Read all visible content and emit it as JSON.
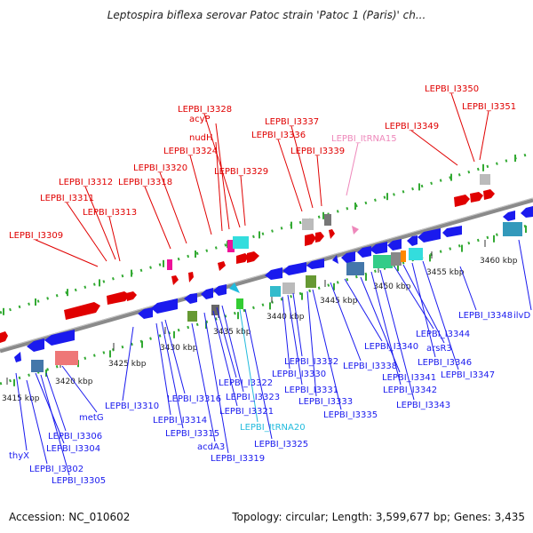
{
  "title": "Leptospira biflexa serovar Patoc strain 'Patoc 1 (Paris)' ch...",
  "footer": {
    "accession": "Accession: NC_010602",
    "summary": "Topology: circular; Length: 3,599,677 bp; Genes: 3,435"
  },
  "colors": {
    "forward": "#e00000",
    "reverse": "#1a1aee",
    "ncrna": "#ee88bb",
    "trna": "#22bbdd",
    "backbone": "#888888",
    "tick": "#33aa33"
  },
  "kbp_ticks": [
    {
      "label": "3415 kbp"
    },
    {
      "label": "3420 kbp"
    },
    {
      "label": "3425 kbp"
    },
    {
      "label": "3430 kbp"
    },
    {
      "label": "3435 kbp"
    },
    {
      "label": "3440 kbp"
    },
    {
      "label": "3445 kbp"
    },
    {
      "label": "3450 kbp"
    },
    {
      "label": "3455 kbp"
    },
    {
      "label": "3460 kbp"
    }
  ],
  "top_labels": [
    {
      "text": "LEPBI_I3309",
      "kind": "forward"
    },
    {
      "text": "LEPBI_I3311",
      "kind": "forward"
    },
    {
      "text": "LEPBI_I3312",
      "kind": "forward"
    },
    {
      "text": "LEPBI_I3313",
      "kind": "forward"
    },
    {
      "text": "LEPBI_I3318",
      "kind": "forward"
    },
    {
      "text": "LEPBI_I3320",
      "kind": "forward"
    },
    {
      "text": "LEPBI_I3324",
      "kind": "forward"
    },
    {
      "text": "nudH",
      "kind": "forward"
    },
    {
      "text": "acyP",
      "kind": "forward"
    },
    {
      "text": "LEPBI_I3328",
      "kind": "forward"
    },
    {
      "text": "LEPBI_I3329",
      "kind": "forward"
    },
    {
      "text": "LEPBI_I3336",
      "kind": "forward"
    },
    {
      "text": "LEPBI_I3337",
      "kind": "forward"
    },
    {
      "text": "LEPBI_I3339",
      "kind": "forward"
    },
    {
      "text": "LEPBI_ItRNA15",
      "kind": "ncrna"
    },
    {
      "text": "LEPBI_I3349",
      "kind": "forward"
    },
    {
      "text": "LEPBI_I3350",
      "kind": "forward"
    },
    {
      "text": "LEPBI_I3351",
      "kind": "forward"
    }
  ],
  "bottom_labels": [
    {
      "text": "thyX",
      "kind": "reverse"
    },
    {
      "text": "LEPBI_I3302",
      "kind": "reverse"
    },
    {
      "text": "LEPBI_I3304",
      "kind": "reverse"
    },
    {
      "text": "LEPBI_I3305",
      "kind": "reverse"
    },
    {
      "text": "LEPBI_I3306",
      "kind": "reverse"
    },
    {
      "text": "metG",
      "kind": "reverse"
    },
    {
      "text": "LEPBI_I3310",
      "kind": "reverse"
    },
    {
      "text": "LEPBI_I3314",
      "kind": "reverse"
    },
    {
      "text": "LEPBI_I3315",
      "kind": "reverse"
    },
    {
      "text": "LEPBI_I3316",
      "kind": "reverse"
    },
    {
      "text": "acdA3",
      "kind": "reverse"
    },
    {
      "text": "LEPBI_I3319",
      "kind": "reverse"
    },
    {
      "text": "LEPBI_I3321",
      "kind": "reverse"
    },
    {
      "text": "LEPBI_I3322",
      "kind": "reverse"
    },
    {
      "text": "LEPBI_I3323",
      "kind": "reverse"
    },
    {
      "text": "LEPBI_ItRNA20",
      "kind": "trna"
    },
    {
      "text": "LEPBI_I3325",
      "kind": "reverse"
    },
    {
      "text": "LEPBI_I3330",
      "kind": "reverse"
    },
    {
      "text": "LEPBI_I3331",
      "kind": "reverse"
    },
    {
      "text": "LEPBI_I3332",
      "kind": "reverse"
    },
    {
      "text": "LEPBI_I3333",
      "kind": "reverse"
    },
    {
      "text": "LEPBI_I3335",
      "kind": "reverse"
    },
    {
      "text": "LEPBI_I3338",
      "kind": "reverse"
    },
    {
      "text": "LEPBI_I3340",
      "kind": "reverse"
    },
    {
      "text": "LEPBI_I3341",
      "kind": "reverse"
    },
    {
      "text": "LEPBI_I3342",
      "kind": "reverse"
    },
    {
      "text": "LEPBI_I3343",
      "kind": "reverse"
    },
    {
      "text": "LEPBI_I3344",
      "kind": "reverse"
    },
    {
      "text": "arsR3",
      "kind": "reverse"
    },
    {
      "text": "LEPBI_I3346",
      "kind": "reverse"
    },
    {
      "text": "LEPBI_I3347",
      "kind": "reverse"
    },
    {
      "text": "LEPBI_I3348",
      "kind": "reverse"
    },
    {
      "text": "ilvD",
      "kind": "reverse"
    }
  ]
}
